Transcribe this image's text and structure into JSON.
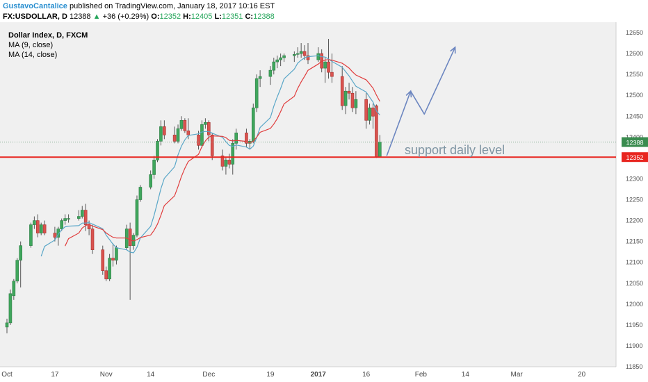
{
  "header": {
    "author": "GustavoCantalice",
    "published": "published on TradingView.com, January 18, 2017 10:16 EST",
    "symbol": "FX:USDOLLAR, D",
    "last": "12388",
    "change_arrow": "▲",
    "change": "+36 (+0.29%)",
    "o_label": "O:",
    "o_value": "12352",
    "h_label": "H:",
    "h_value": "12405",
    "l_label": "L:",
    "l_value": "12351",
    "c_label": "C:",
    "c_value": "12388"
  },
  "legend": {
    "title": "Dollar Index, D, FXCM",
    "ma1": "MA (9, close)",
    "ma2": "MA (14, close)"
  },
  "annotations": {
    "support_text": "support daily level",
    "support_level": 12352,
    "dotted_level": 12388,
    "projection": [
      [
        17,
        12355
      ],
      [
        24,
        12510
      ],
      [
        28,
        12455
      ],
      [
        37,
        12615
      ]
    ]
  },
  "colors": {
    "up": "#3fa65c",
    "down": "#d9534f",
    "wick": "#555555",
    "ma9": "#5aa7c8",
    "ma14": "#e03c3c",
    "support_line": "#e8251f",
    "projection": "#6c86c0",
    "support_text": "#7f95a3",
    "plot_bg": "#f0f0f0",
    "badge_last": "#3a8c4f",
    "badge_support": "#e8251f"
  },
  "chart_data": {
    "type": "candlestick",
    "title": "Dollar Index, D, FXCM",
    "ylim": [
      11850,
      12675
    ],
    "y_ticks": [
      11850,
      11900,
      11950,
      12000,
      12050,
      12100,
      12150,
      12200,
      12250,
      12300,
      12350,
      12400,
      12450,
      12500,
      12550,
      12600,
      12650
    ],
    "x_ticks": [
      {
        "label": "Oct",
        "day": "2016-10-03"
      },
      {
        "label": "17",
        "day": "2016-10-17"
      },
      {
        "label": "Nov",
        "day": "2016-11-01"
      },
      {
        "label": "14",
        "day": "2016-11-14"
      },
      {
        "label": "Dec",
        "day": "2016-12-01"
      },
      {
        "label": "19",
        "day": "2016-12-19"
      },
      {
        "label": "2017",
        "day": "2017-01-02"
      },
      {
        "label": "16",
        "day": "2017-01-16"
      },
      {
        "label": "Feb",
        "day": "2017-02-01"
      },
      {
        "label": "14",
        "day": "2017-02-14"
      },
      {
        "label": "Mar",
        "day": "2017-03-01"
      },
      {
        "label": "20",
        "day": "2017-03-20"
      }
    ],
    "x_range": [
      "2016-10-03",
      "2017-03-28"
    ],
    "candles": [
      {
        "date": "2016-10-03",
        "o": 11945,
        "h": 11965,
        "l": 11930,
        "c": 11955
      },
      {
        "date": "2016-10-04",
        "o": 11955,
        "h": 12035,
        "l": 11950,
        "c": 12025
      },
      {
        "date": "2016-10-05",
        "o": 12020,
        "h": 12060,
        "l": 12010,
        "c": 12055
      },
      {
        "date": "2016-10-06",
        "o": 12055,
        "h": 12110,
        "l": 12050,
        "c": 12105
      },
      {
        "date": "2016-10-07",
        "o": 12105,
        "h": 12150,
        "l": 12040,
        "c": 12140
      },
      {
        "date": "2016-10-10",
        "o": 12140,
        "h": 12195,
        "l": 12135,
        "c": 12190
      },
      {
        "date": "2016-10-11",
        "o": 12190,
        "h": 12210,
        "l": 12180,
        "c": 12200
      },
      {
        "date": "2016-10-12",
        "o": 12200,
        "h": 12215,
        "l": 12160,
        "c": 12170
      },
      {
        "date": "2016-10-13",
        "o": 12170,
        "h": 12195,
        "l": 12165,
        "c": 12190
      },
      {
        "date": "2016-10-14",
        "o": 12190,
        "h": 12200,
        "l": 12165,
        "c": 12170
      },
      {
        "date": "2016-10-17",
        "o": 12170,
        "h": 12185,
        "l": 12150,
        "c": 12160
      },
      {
        "date": "2016-10-18",
        "o": 12160,
        "h": 12185,
        "l": 12140,
        "c": 12180
      },
      {
        "date": "2016-10-19",
        "o": 12180,
        "h": 12205,
        "l": 12175,
        "c": 12200
      },
      {
        "date": "2016-10-20",
        "o": 12200,
        "h": 12215,
        "l": 12190,
        "c": 12205
      },
      {
        "date": "2016-10-21",
        "o": 12205,
        "h": 12215,
        "l": 12195,
        "c": 12205
      },
      {
        "date": "2016-10-24",
        "o": 12205,
        "h": 12225,
        "l": 12200,
        "c": 12210
      },
      {
        "date": "2016-10-25",
        "o": 12210,
        "h": 12235,
        "l": 12205,
        "c": 12225
      },
      {
        "date": "2016-10-26",
        "o": 12225,
        "h": 12240,
        "l": 12175,
        "c": 12190
      },
      {
        "date": "2016-10-27",
        "o": 12190,
        "h": 12200,
        "l": 12165,
        "c": 12180
      },
      {
        "date": "2016-10-28",
        "o": 12180,
        "h": 12190,
        "l": 12120,
        "c": 12130
      },
      {
        "date": "2016-10-31",
        "o": 12130,
        "h": 12140,
        "l": 12070,
        "c": 12080
      },
      {
        "date": "2016-11-01",
        "o": 12080,
        "h": 12090,
        "l": 12055,
        "c": 12060
      },
      {
        "date": "2016-11-02",
        "o": 12060,
        "h": 12120,
        "l": 12055,
        "c": 12110
      },
      {
        "date": "2016-11-03",
        "o": 12110,
        "h": 12145,
        "l": 12090,
        "c": 12105
      },
      {
        "date": "2016-11-04",
        "o": 12105,
        "h": 12140,
        "l": 12095,
        "c": 12135
      },
      {
        "date": "2016-11-07",
        "o": 12135,
        "h": 12190,
        "l": 12130,
        "c": 12180
      },
      {
        "date": "2016-11-08",
        "o": 12180,
        "h": 12195,
        "l": 12010,
        "c": 12140
      },
      {
        "date": "2016-11-09",
        "o": 12140,
        "h": 12170,
        "l": 12130,
        "c": 12165
      },
      {
        "date": "2016-11-10",
        "o": 12165,
        "h": 12260,
        "l": 12160,
        "c": 12250
      },
      {
        "date": "2016-11-11",
        "o": 12250,
        "h": 12285,
        "l": 12245,
        "c": 12280
      },
      {
        "date": "2016-11-14",
        "o": 12280,
        "h": 12320,
        "l": 12275,
        "c": 12310
      },
      {
        "date": "2016-11-15",
        "o": 12310,
        "h": 12355,
        "l": 12300,
        "c": 12345
      },
      {
        "date": "2016-11-16",
        "o": 12345,
        "h": 12395,
        "l": 12340,
        "c": 12390
      },
      {
        "date": "2016-11-17",
        "o": 12390,
        "h": 12440,
        "l": 12380,
        "c": 12425
      },
      {
        "date": "2016-11-18",
        "o": 12425,
        "h": 12440,
        "l": 12395,
        "c": 12405
      },
      {
        "date": "2016-11-21",
        "o": 12405,
        "h": 12425,
        "l": 12385,
        "c": 12390
      },
      {
        "date": "2016-11-22",
        "o": 12390,
        "h": 12430,
        "l": 12385,
        "c": 12420
      },
      {
        "date": "2016-11-23",
        "o": 12420,
        "h": 12450,
        "l": 12415,
        "c": 12440
      },
      {
        "date": "2016-11-24",
        "o": 12440,
        "h": 12445,
        "l": 12410,
        "c": 12415
      },
      {
        "date": "2016-11-25",
        "o": 12415,
        "h": 12445,
        "l": 12395,
        "c": 12405
      },
      {
        "date": "2016-11-28",
        "o": 12405,
        "h": 12415,
        "l": 12370,
        "c": 12380
      },
      {
        "date": "2016-11-29",
        "o": 12380,
        "h": 12440,
        "l": 12375,
        "c": 12430
      },
      {
        "date": "2016-11-30",
        "o": 12430,
        "h": 12445,
        "l": 12420,
        "c": 12435
      },
      {
        "date": "2016-12-01",
        "o": 12435,
        "h": 12440,
        "l": 12390,
        "c": 12405
      },
      {
        "date": "2016-12-02",
        "o": 12405,
        "h": 12410,
        "l": 12345,
        "c": 12355
      },
      {
        "date": "2016-12-05",
        "o": 12355,
        "h": 12370,
        "l": 12320,
        "c": 12330
      },
      {
        "date": "2016-12-06",
        "o": 12330,
        "h": 12350,
        "l": 12310,
        "c": 12345
      },
      {
        "date": "2016-12-07",
        "o": 12345,
        "h": 12360,
        "l": 12325,
        "c": 12335
      },
      {
        "date": "2016-12-08",
        "o": 12335,
        "h": 12395,
        "l": 12310,
        "c": 12385
      },
      {
        "date": "2016-12-09",
        "o": 12385,
        "h": 12420,
        "l": 12370,
        "c": 12410
      },
      {
        "date": "2016-12-12",
        "o": 12410,
        "h": 12420,
        "l": 12375,
        "c": 12385
      },
      {
        "date": "2016-12-13",
        "o": 12385,
        "h": 12395,
        "l": 12370,
        "c": 12390
      },
      {
        "date": "2016-12-14",
        "o": 12390,
        "h": 12480,
        "l": 12385,
        "c": 12470
      },
      {
        "date": "2016-12-15",
        "o": 12470,
        "h": 12550,
        "l": 12460,
        "c": 12540
      },
      {
        "date": "2016-12-16",
        "o": 12540,
        "h": 12560,
        "l": 12520,
        "c": 12545
      },
      {
        "date": "2016-12-19",
        "o": 12545,
        "h": 12570,
        "l": 12525,
        "c": 12560
      },
      {
        "date": "2016-12-20",
        "o": 12560,
        "h": 12590,
        "l": 12550,
        "c": 12580
      },
      {
        "date": "2016-12-21",
        "o": 12580,
        "h": 12595,
        "l": 12565,
        "c": 12585
      },
      {
        "date": "2016-12-22",
        "o": 12585,
        "h": 12600,
        "l": 12570,
        "c": 12590
      },
      {
        "date": "2016-12-23",
        "o": 12590,
        "h": 12600,
        "l": 12580,
        "c": 12595
      },
      {
        "date": "2016-12-26",
        "o": 12595,
        "h": 12605,
        "l": 12580,
        "c": 12598
      },
      {
        "date": "2016-12-27",
        "o": 12598,
        "h": 12615,
        "l": 12590,
        "c": 12600
      },
      {
        "date": "2016-12-28",
        "o": 12600,
        "h": 12625,
        "l": 12590,
        "c": 12605
      },
      {
        "date": "2016-12-29",
        "o": 12605,
        "h": 12620,
        "l": 12585,
        "c": 12595
      },
      {
        "date": "2016-12-30",
        "o": 12595,
        "h": 12625,
        "l": 12575,
        "c": 12585
      },
      {
        "date": "2017-01-02",
        "o": 12585,
        "h": 12615,
        "l": 12580,
        "c": 12600
      },
      {
        "date": "2017-01-03",
        "o": 12600,
        "h": 12610,
        "l": 12555,
        "c": 12565
      },
      {
        "date": "2017-01-04",
        "o": 12565,
        "h": 12590,
        "l": 12530,
        "c": 12580
      },
      {
        "date": "2017-01-05",
        "o": 12580,
        "h": 12635,
        "l": 12540,
        "c": 12555
      },
      {
        "date": "2017-01-06",
        "o": 12555,
        "h": 12600,
        "l": 12530,
        "c": 12545
      },
      {
        "date": "2017-01-09",
        "o": 12545,
        "h": 12570,
        "l": 12465,
        "c": 12475
      },
      {
        "date": "2017-01-10",
        "o": 12475,
        "h": 12520,
        "l": 12455,
        "c": 12510
      },
      {
        "date": "2017-01-11",
        "o": 12510,
        "h": 12530,
        "l": 12490,
        "c": 12505
      },
      {
        "date": "2017-01-12",
        "o": 12505,
        "h": 12520,
        "l": 12460,
        "c": 12470
      },
      {
        "date": "2017-01-13",
        "o": 12470,
        "h": 12510,
        "l": 12455,
        "c": 12490
      },
      {
        "date": "2017-01-16",
        "o": 12490,
        "h": 12505,
        "l": 12420,
        "c": 12440
      },
      {
        "date": "2017-01-17",
        "o": 12440,
        "h": 12480,
        "l": 12430,
        "c": 12470
      },
      {
        "date": "2017-01-18",
        "o": 12470,
        "h": 12480,
        "l": 12420,
        "c": 12450
      },
      {
        "date": "2017-01-19",
        "o": 12475,
        "h": 12478,
        "l": 12350,
        "c": 12352
      },
      {
        "date": "2017-01-20",
        "o": 12352,
        "h": 12405,
        "l": 12351,
        "c": 12388
      }
    ],
    "series": [
      {
        "name": "MA (9, close)",
        "period": 9
      },
      {
        "name": "MA (14, close)",
        "period": 14
      }
    ]
  }
}
